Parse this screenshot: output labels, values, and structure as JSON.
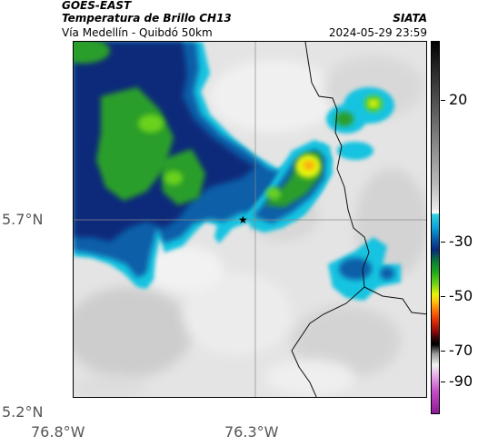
{
  "header": {
    "satellite": "GOES-EAST",
    "product": "Temperatura de Brillo CH13",
    "region": "Vía Medellín - Quibdó 50km",
    "source": "SIATA",
    "timestamp": "2024-05-29 23:59"
  },
  "map": {
    "lat_labels": [
      "5.7°N",
      "5.2°N"
    ],
    "lon_labels": [
      "76.8°W",
      "76.3°W"
    ],
    "marker": "star-marker"
  },
  "colorbar": {
    "ticks": [
      "20",
      "-30",
      "-50",
      "-70",
      "-90"
    ]
  },
  "colors": {
    "cloud_light": "#e6e6e6",
    "cyan": "#19c3e0",
    "blue": "#0b5fa8",
    "navy": "#0a2a7a",
    "green": "#2a9e2a",
    "yellow": "#e8f20a",
    "orange": "#ffa60a"
  }
}
